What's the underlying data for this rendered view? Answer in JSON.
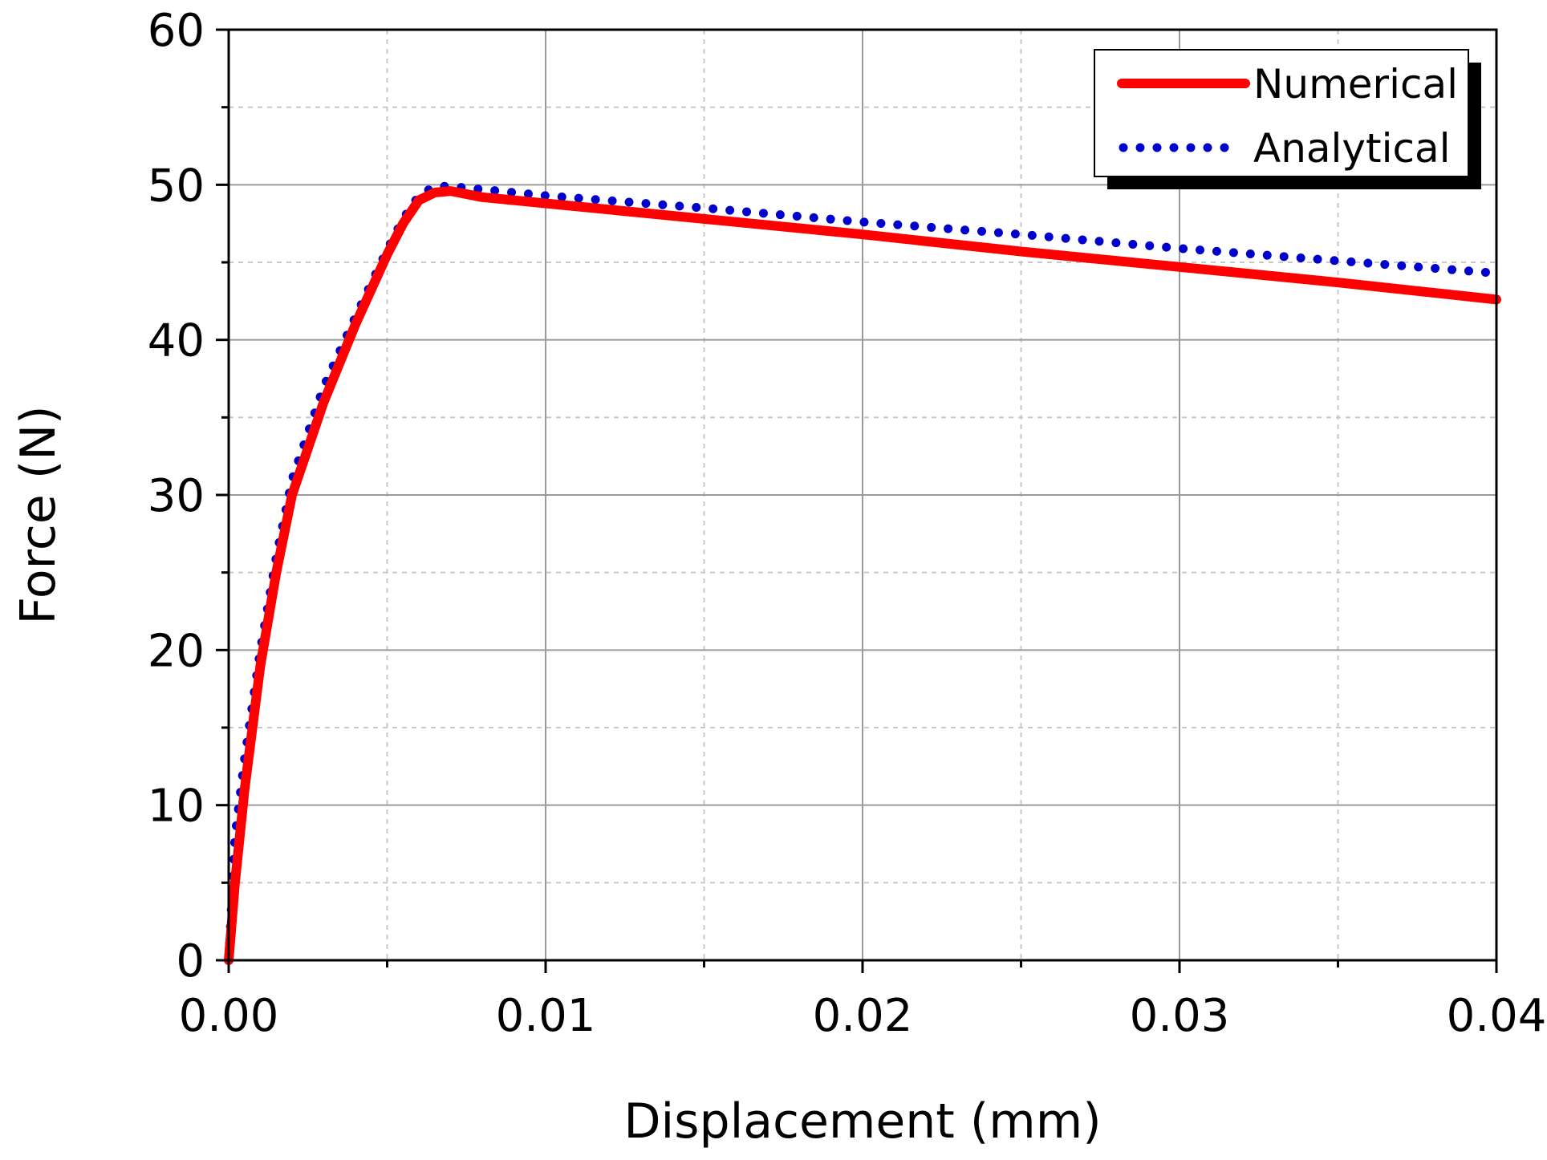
{
  "chart_data": {
    "type": "line",
    "title": "",
    "xlabel": "Displacement (mm)",
    "ylabel": "Force (N)",
    "xlim": [
      0,
      0.04
    ],
    "ylim": [
      0,
      60
    ],
    "x_ticks": [
      "0.00",
      "0.01",
      "0.02",
      "0.03",
      "0.04"
    ],
    "y_ticks": [
      "0",
      "10",
      "20",
      "30",
      "40",
      "50",
      "60"
    ],
    "grid": true,
    "legend_position": "top-right",
    "series": [
      {
        "name": "Numerical",
        "color": "#ff0000",
        "style": "solid",
        "x": [
          0,
          0.0002,
          0.0005,
          0.001,
          0.0015,
          0.002,
          0.003,
          0.004,
          0.005,
          0.0055,
          0.006,
          0.0065,
          0.007,
          0.008,
          0.01,
          0.015,
          0.02,
          0.025,
          0.03,
          0.035,
          0.04
        ],
        "y": [
          0,
          5,
          11,
          19,
          25,
          30,
          36,
          41,
          45.5,
          47.5,
          49,
          49.5,
          49.6,
          49.2,
          48.8,
          47.8,
          46.8,
          45.7,
          44.7,
          43.7,
          42.6
        ]
      },
      {
        "name": "Analytical",
        "color": "#0000cc",
        "style": "dotted",
        "x": [
          0,
          0.0002,
          0.0005,
          0.001,
          0.0015,
          0.002,
          0.003,
          0.004,
          0.005,
          0.0055,
          0.006,
          0.0065,
          0.007,
          0.008,
          0.01,
          0.015,
          0.02,
          0.025,
          0.03,
          0.035,
          0.04
        ],
        "y": [
          0,
          8,
          13,
          20,
          26,
          31,
          37,
          41.5,
          45.8,
          47.8,
          49.3,
          49.9,
          49.9,
          49.7,
          49.3,
          48.5,
          47.6,
          46.8,
          45.9,
          45.1,
          44.3
        ]
      }
    ]
  }
}
